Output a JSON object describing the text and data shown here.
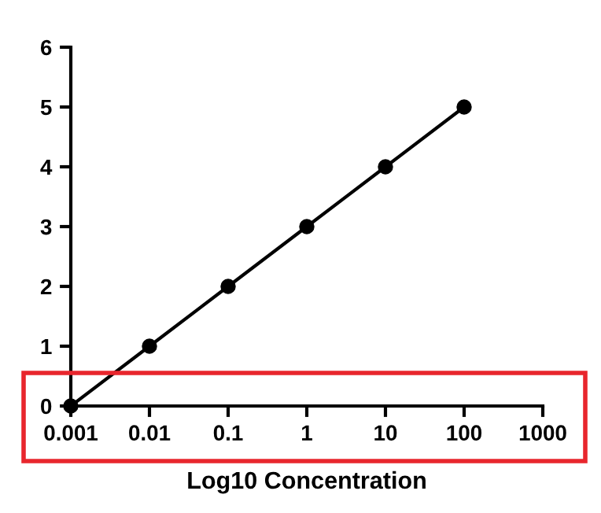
{
  "chart_data": {
    "type": "line",
    "xlabel": "Log10 Concentration",
    "log": "x",
    "x": [
      0.001,
      0.01,
      0.1,
      1,
      10,
      100
    ],
    "series": [
      {
        "color": "#000000",
        "values": [
          0,
          1,
          2,
          3,
          4,
          5
        ]
      }
    ],
    "xlim": [
      0.001,
      1000
    ],
    "xticks": [
      0.001,
      0.01,
      0.1,
      1,
      10,
      100,
      1000
    ],
    "ylim": [
      0,
      6
    ],
    "yticks": [
      0,
      1,
      2,
      3,
      4,
      5,
      6
    ],
    "marker": "circle",
    "line_style": "solid",
    "grid": false,
    "legend": false
  }
}
